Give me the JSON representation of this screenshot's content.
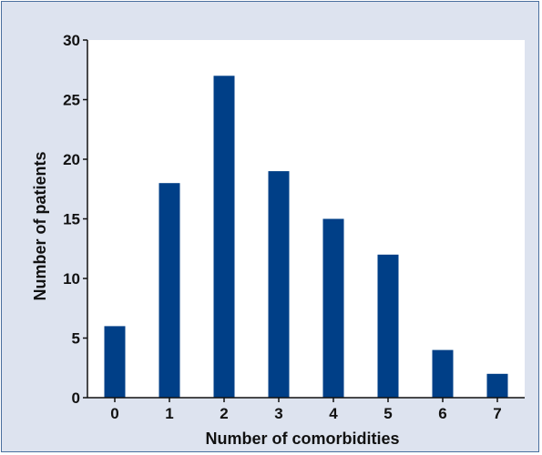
{
  "colors": {
    "background": "#dde3ef",
    "plot_area": "#ffffff",
    "bar_fill": "#003f87",
    "frame_border": "#4a6f9e",
    "axis": "#111111"
  },
  "chart_data": {
    "type": "bar",
    "categories": [
      "0",
      "1",
      "2",
      "3",
      "4",
      "5",
      "6",
      "7"
    ],
    "values": [
      6,
      18,
      27,
      19,
      15,
      12,
      4,
      2
    ],
    "title": "",
    "xlabel": "Number of comorbidities",
    "ylabel": "Number of patients",
    "ylim": [
      0,
      30
    ],
    "yticks": [
      "0",
      "5",
      "10",
      "15",
      "20",
      "25",
      "30"
    ],
    "grid": false,
    "legend": "none"
  }
}
